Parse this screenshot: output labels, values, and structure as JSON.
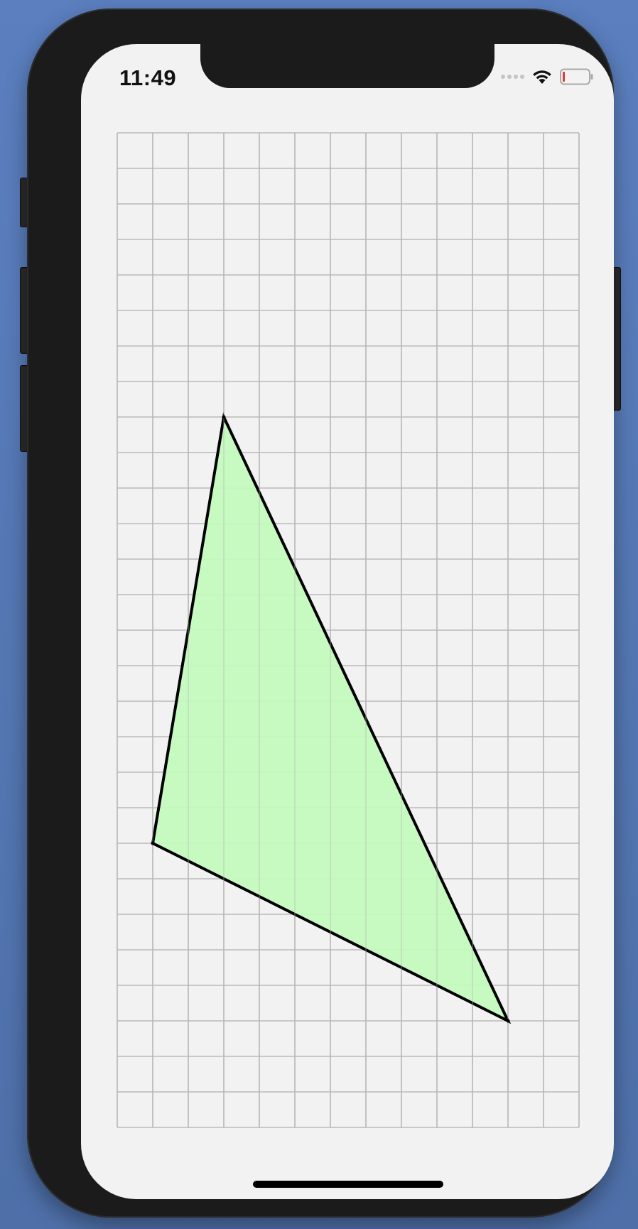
{
  "status_bar": {
    "time": "11:49",
    "icons": [
      "cellular-dots-icon",
      "wifi-icon",
      "battery-low-icon"
    ]
  },
  "colors": {
    "triangle_fill": "#c3fbbd",
    "triangle_stroke": "#000000",
    "grid_line": "#b9b9b9",
    "screen_bg": "#f2f2f2",
    "battery_level": "#e53935"
  },
  "grid": {
    "columns": 13,
    "rows": 28
  },
  "triangle": {
    "vertices": [
      {
        "col": 3,
        "row": 8
      },
      {
        "col": 1,
        "row": 20
      },
      {
        "col": 11,
        "row": 25
      }
    ]
  }
}
